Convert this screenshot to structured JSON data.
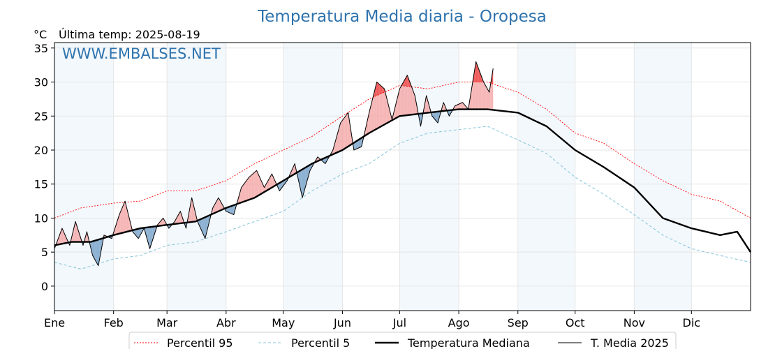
{
  "chart_data": {
    "type": "line",
    "title": "Temperatura Media diaria - Oropesa",
    "unit_label": "°C",
    "subtitle": "Última temp: 2025-08-19",
    "watermark": "WWW.EMBALSES.NET",
    "x_months": [
      "Ene",
      "Feb",
      "Mar",
      "Abr",
      "May",
      "Jun",
      "Jul",
      "Ago",
      "Sep",
      "Oct",
      "Nov",
      "Dic"
    ],
    "x_month_start_day": [
      1,
      32,
      60,
      91,
      121,
      152,
      182,
      213,
      244,
      274,
      305,
      335
    ],
    "x_range_days": [
      1,
      366
    ],
    "y_ticks": [
      0,
      5,
      10,
      15,
      20,
      25,
      30,
      35
    ],
    "ylim": [
      -3.6,
      35.8
    ],
    "grid": true,
    "legend_position": "bottom-center",
    "colors": {
      "p95": "#ff0000",
      "p5": "#8cc8dc",
      "median": "#000000",
      "current": "#000000",
      "above_fill": "#f4a3a3",
      "below_fill": "#6f9cc6",
      "above_p95_fill": "#ee4444",
      "below_p5_fill": "#2f5f92",
      "band": "#dceaf6",
      "title": "#2e73ad"
    },
    "series": [
      {
        "name": "Percentil 95",
        "style": "dotted-red",
        "points": [
          [
            1,
            10.0
          ],
          [
            15,
            11.5
          ],
          [
            32,
            12.2
          ],
          [
            46,
            12.5
          ],
          [
            60,
            14.0
          ],
          [
            75,
            14.0
          ],
          [
            91,
            15.5
          ],
          [
            106,
            18.0
          ],
          [
            121,
            20.0
          ],
          [
            136,
            22.0
          ],
          [
            152,
            25.0
          ],
          [
            166,
            27.5
          ],
          [
            182,
            29.5
          ],
          [
            197,
            29.0
          ],
          [
            213,
            30.0
          ],
          [
            228,
            30.0
          ],
          [
            244,
            28.5
          ],
          [
            259,
            26.0
          ],
          [
            274,
            22.5
          ],
          [
            289,
            21.0
          ],
          [
            305,
            18.0
          ],
          [
            320,
            15.5
          ],
          [
            335,
            13.5
          ],
          [
            350,
            12.5
          ],
          [
            366,
            10.0
          ]
        ]
      },
      {
        "name": "Percentil 5",
        "style": "dashed-lightblue",
        "points": [
          [
            1,
            3.5
          ],
          [
            15,
            2.5
          ],
          [
            32,
            4.0
          ],
          [
            46,
            4.5
          ],
          [
            60,
            6.0
          ],
          [
            75,
            6.5
          ],
          [
            91,
            8.0
          ],
          [
            106,
            9.5
          ],
          [
            121,
            11.0
          ],
          [
            136,
            14.0
          ],
          [
            152,
            16.5
          ],
          [
            166,
            18.0
          ],
          [
            182,
            21.0
          ],
          [
            197,
            22.5
          ],
          [
            213,
            23.0
          ],
          [
            228,
            23.5
          ],
          [
            244,
            21.5
          ],
          [
            259,
            19.5
          ],
          [
            274,
            16.0
          ],
          [
            289,
            13.5
          ],
          [
            305,
            10.5
          ],
          [
            320,
            7.5
          ],
          [
            335,
            5.5
          ],
          [
            350,
            4.5
          ],
          [
            366,
            3.5
          ]
        ]
      },
      {
        "name": "Temperatura Mediana",
        "style": "thick-black",
        "points": [
          [
            1,
            6.0
          ],
          [
            10,
            6.5
          ],
          [
            20,
            6.5
          ],
          [
            32,
            7.5
          ],
          [
            46,
            8.5
          ],
          [
            60,
            9.0
          ],
          [
            75,
            9.5
          ],
          [
            91,
            11.5
          ],
          [
            106,
            13.0
          ],
          [
            121,
            15.5
          ],
          [
            136,
            18.0
          ],
          [
            152,
            20.0
          ],
          [
            166,
            22.5
          ],
          [
            182,
            25.0
          ],
          [
            197,
            25.5
          ],
          [
            213,
            26.0
          ],
          [
            228,
            26.0
          ],
          [
            244,
            25.5
          ],
          [
            259,
            23.5
          ],
          [
            274,
            20.0
          ],
          [
            289,
            17.5
          ],
          [
            305,
            14.5
          ],
          [
            320,
            10.0
          ],
          [
            335,
            8.5
          ],
          [
            350,
            7.5
          ],
          [
            359,
            8.0
          ],
          [
            366,
            5.0
          ]
        ]
      },
      {
        "name": "T. Media 2025",
        "style": "thin-black",
        "points": [
          [
            1,
            5.5
          ],
          [
            5,
            8.5
          ],
          [
            9,
            6.0
          ],
          [
            12,
            9.5
          ],
          [
            16,
            6.0
          ],
          [
            18,
            8.0
          ],
          [
            21,
            4.5
          ],
          [
            24,
            3.0
          ],
          [
            27,
            7.5
          ],
          [
            31,
            7.0
          ],
          [
            35,
            10.5
          ],
          [
            38,
            12.5
          ],
          [
            42,
            8.0
          ],
          [
            45,
            7.0
          ],
          [
            48,
            8.5
          ],
          [
            51,
            5.5
          ],
          [
            55,
            9.0
          ],
          [
            58,
            10.0
          ],
          [
            61,
            8.5
          ],
          [
            64,
            9.5
          ],
          [
            67,
            11.0
          ],
          [
            70,
            8.5
          ],
          [
            73,
            13.0
          ],
          [
            76,
            9.5
          ],
          [
            80,
            7.0
          ],
          [
            84,
            11.5
          ],
          [
            87,
            13.0
          ],
          [
            91,
            11.0
          ],
          [
            95,
            10.5
          ],
          [
            99,
            14.5
          ],
          [
            103,
            16.0
          ],
          [
            107,
            17.0
          ],
          [
            111,
            14.5
          ],
          [
            115,
            16.5
          ],
          [
            119,
            14.0
          ],
          [
            123,
            15.5
          ],
          [
            127,
            18.0
          ],
          [
            131,
            13.0
          ],
          [
            135,
            17.0
          ],
          [
            139,
            19.0
          ],
          [
            143,
            18.0
          ],
          [
            147,
            20.0
          ],
          [
            151,
            24.0
          ],
          [
            155,
            25.5
          ],
          [
            158,
            20.0
          ],
          [
            162,
            20.5
          ],
          [
            166,
            25.5
          ],
          [
            170,
            30.0
          ],
          [
            174,
            29.0
          ],
          [
            178,
            24.5
          ],
          [
            182,
            29.0
          ],
          [
            186,
            31.0
          ],
          [
            190,
            28.0
          ],
          [
            193,
            23.5
          ],
          [
            196,
            28.0
          ],
          [
            199,
            25.0
          ],
          [
            202,
            24.0
          ],
          [
            205,
            27.0
          ],
          [
            208,
            25.0
          ],
          [
            211,
            26.5
          ],
          [
            215,
            27.0
          ],
          [
            218,
            26.0
          ],
          [
            222,
            33.0
          ],
          [
            226,
            30.0
          ],
          [
            229,
            28.5
          ],
          [
            231,
            32.0
          ]
        ]
      }
    ]
  },
  "legend": [
    {
      "label": "Percentil 95",
      "style": "dotted-red"
    },
    {
      "label": "Percentil 5",
      "style": "dashed-lightblue"
    },
    {
      "label": "Temperatura Mediana",
      "style": "thick-black"
    },
    {
      "label": "T. Media 2025",
      "style": "thin-black"
    }
  ]
}
